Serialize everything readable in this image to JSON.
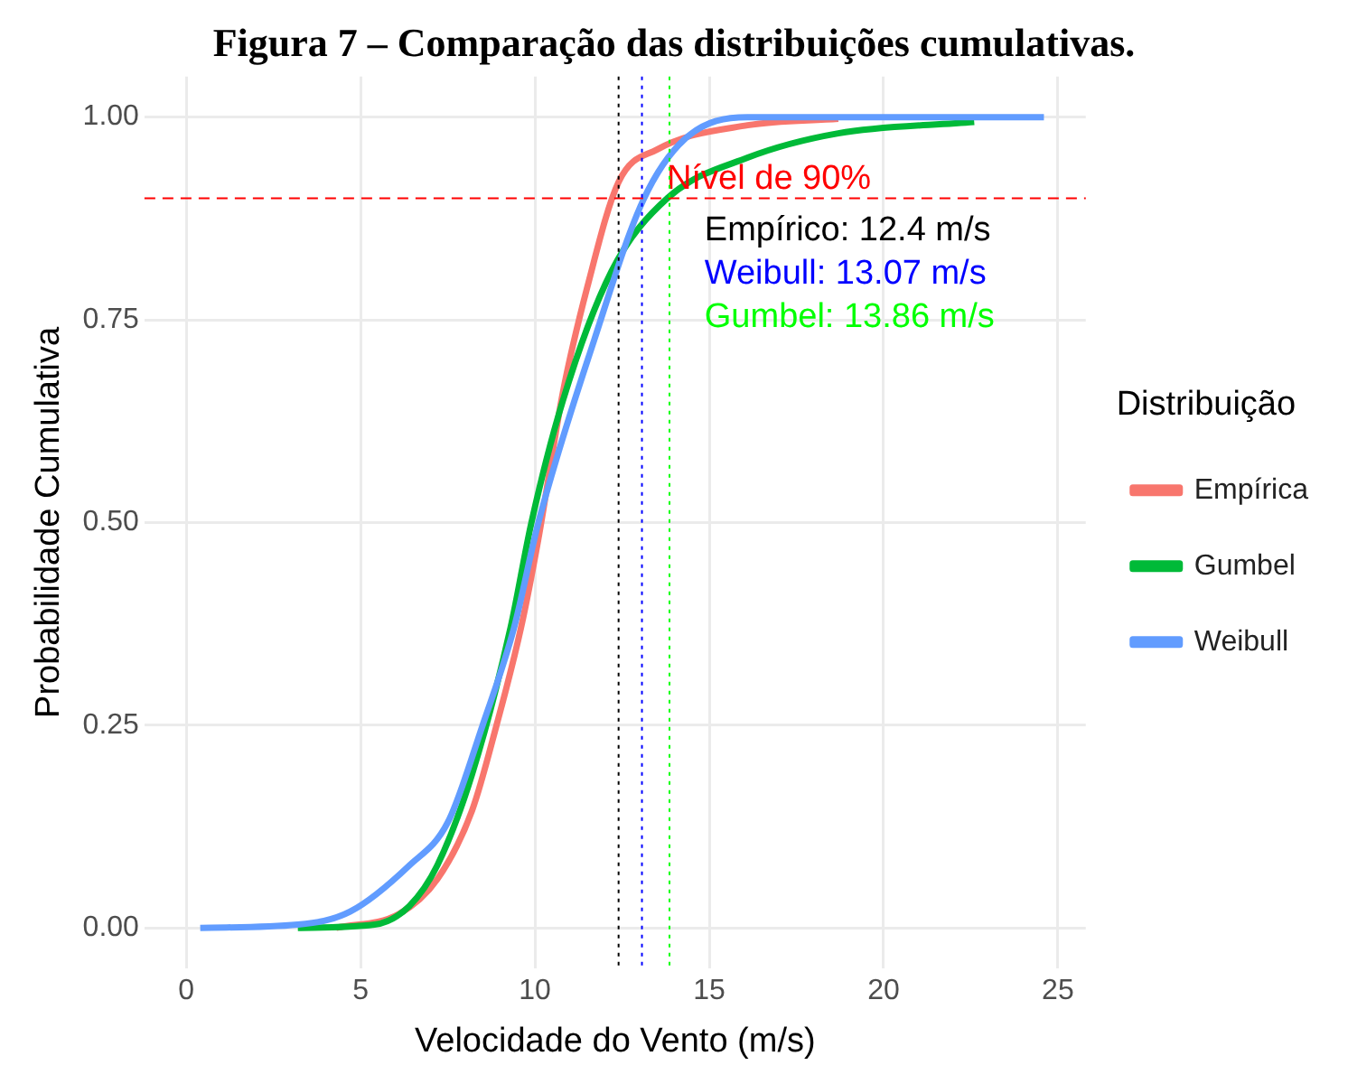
{
  "chart_data": {
    "type": "line",
    "title": "Figura 7 – Comparação das distribuições cumulativas.",
    "xlabel": "Velocidade do Vento (m/s)",
    "ylabel": "Probabilidade Cumulativa",
    "legend_title": "Distribuição",
    "legend": "right",
    "grid": true,
    "marker": "none",
    "line_style": "solid",
    "xlim": [
      -1.2,
      25.8
    ],
    "xticks": [
      0,
      5,
      10,
      15,
      20,
      25
    ],
    "ylim": [
      -0.05,
      1.05
    ],
    "yticks": [
      {
        "value": 0,
        "label": "0.00"
      },
      {
        "value": 0.25,
        "label": "0.25"
      },
      {
        "value": 0.5,
        "label": "0.50"
      },
      {
        "value": 0.75,
        "label": "0.75"
      },
      {
        "value": 1,
        "label": "1.00"
      }
    ],
    "series": [
      {
        "name": "Empírica",
        "color": "#f8766d",
        "x": [
          4.3,
          6.1,
          7.2,
          8.2,
          8.9,
          9.6,
          10.1,
          10.8,
          11.5,
          12.4,
          13.5,
          16.1,
          18.7
        ],
        "values": [
          0,
          0.017,
          0.06,
          0.145,
          0.25,
          0.37,
          0.48,
          0.66,
          0.79,
          0.92,
          0.96,
          0.99,
          0.998
        ]
      },
      {
        "name": "Gumbel",
        "color": "#00ba38",
        "x": [
          3.2,
          5.4,
          6.4,
          7.2,
          8.2,
          9.3,
          9.9,
          10.8,
          12.2,
          13.8,
          16.1,
          18.7,
          22.6
        ],
        "values": [
          0,
          0.004,
          0.027,
          0.077,
          0.19,
          0.37,
          0.5,
          0.65,
          0.81,
          0.9,
          0.95,
          0.98,
          0.994
        ]
      },
      {
        "name": "Weibull",
        "color": "#619cff",
        "x": [
          0.4,
          3.2,
          4.7,
          6.4,
          7.5,
          8.5,
          9.4,
          10.1,
          11.7,
          13.1,
          14.3,
          16.1,
          24.6
        ],
        "values": [
          0,
          0.004,
          0.02,
          0.077,
          0.13,
          0.25,
          0.37,
          0.5,
          0.725,
          0.897,
          0.973,
          1,
          1
        ]
      }
    ],
    "ref_lines": [
      {
        "axis": "y",
        "value": 0.9,
        "label": "Nível de 90%",
        "color": "#ff0000",
        "line_style": "dashed"
      },
      {
        "axis": "x",
        "value": 12.4,
        "label": "Empírico: 12.4 m/s",
        "color": "#000000",
        "line_style": "dotted"
      },
      {
        "axis": "x",
        "value": 13.07,
        "label": "Weibull: 13.07 m/s",
        "color": "#0000ff",
        "line_style": "dotted"
      },
      {
        "axis": "x",
        "value": 13.86,
        "label": "Gumbel: 13.86 m/s",
        "color": "#00ff00",
        "line_style": "dotted"
      }
    ]
  }
}
